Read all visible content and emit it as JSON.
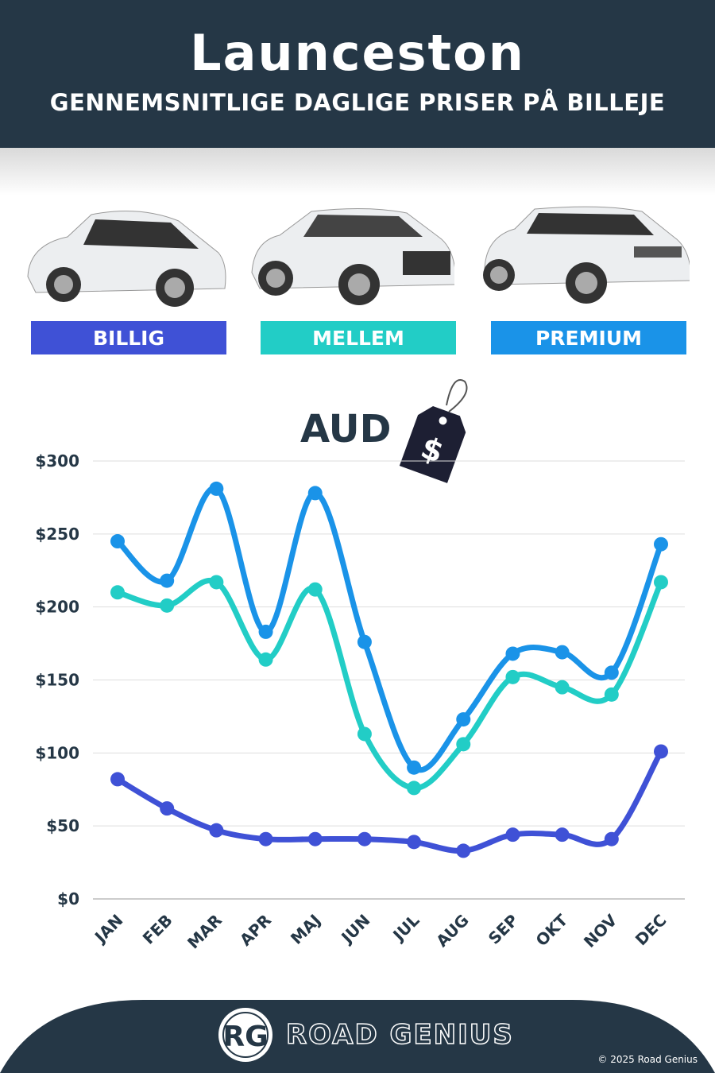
{
  "header": {
    "title": "Launceston",
    "subtitle": "GENNEMSNITLIGE DAGLIGE PRISER PÅ BILLEJE"
  },
  "categories_labels": [
    "BILLIG",
    "MELLEM",
    "PREMIUM"
  ],
  "currency": "AUD",
  "price_tag_symbol": "$",
  "colors": {
    "header": "#253746",
    "billig": "#3f51d6",
    "mellem": "#22cdc6",
    "premium": "#1a93e8"
  },
  "chart_data": {
    "type": "line",
    "x": [
      "JAN",
      "FEB",
      "MAR",
      "APR",
      "MAJ",
      "JUN",
      "JUL",
      "AUG",
      "SEP",
      "OKT",
      "NOV",
      "DEC"
    ],
    "ylim": [
      0,
      300
    ],
    "yticks": [
      "$0",
      "$50",
      "$100",
      "$150",
      "$200",
      "$250",
      "$300"
    ],
    "grid": true,
    "series": [
      {
        "name": "BILLIG",
        "color": "#3f51d6",
        "values": [
          82,
          62,
          47,
          41,
          41,
          41,
          39,
          33,
          44,
          44,
          41,
          101
        ]
      },
      {
        "name": "MELLEM",
        "color": "#22cdc6",
        "values": [
          210,
          201,
          217,
          164,
          212,
          113,
          76,
          106,
          152,
          145,
          140,
          217
        ]
      },
      {
        "name": "PREMIUM",
        "color": "#1a93e8",
        "values": [
          245,
          218,
          281,
          183,
          278,
          176,
          90,
          123,
          168,
          169,
          155,
          243
        ]
      }
    ]
  },
  "footer": {
    "logo": "RG",
    "brand": "ROAD GENIUS",
    "copyright": "© 2025 Road Genius"
  }
}
